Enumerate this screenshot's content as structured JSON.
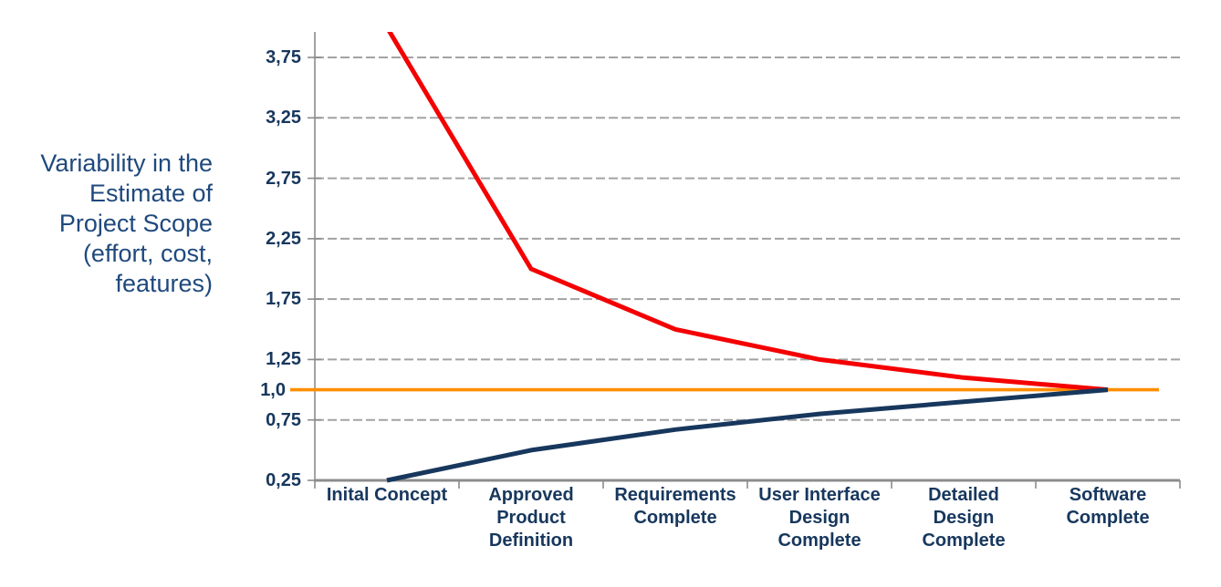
{
  "page": {
    "background": "#FFFFFF"
  },
  "y_axis_title": {
    "text": "Variability in the Estimate of Project Scope (effort, cost, features)",
    "lines": [
      "Variability in the",
      "Estimate of",
      "Project Scope",
      "(effort, cost,",
      "features)"
    ]
  },
  "colors": {
    "title_text": "#1F497D",
    "label_text": "#17375D",
    "upper_line": "#F40000",
    "lower_line": "#17375D",
    "baseline_line": "#FF8E00",
    "gridline": "#A3A3A3",
    "axis": "#8C8C8C"
  },
  "chart_data": {
    "type": "line",
    "title": "",
    "xlabel": "",
    "ylabel": "Variability in the Estimate of Project Scope (effort, cost, features)",
    "decimal_separator": ",",
    "legend": "none",
    "grid": "horizontal-dashed",
    "categories": [
      "Inital Concept",
      "Approved Product Definition",
      "Requirements Complete",
      "User Interface Design Complete",
      "Detailed Design Complete",
      "Software Complete"
    ],
    "category_label_lines": [
      [
        "Inital Concept"
      ],
      [
        "Approved",
        "Product",
        "Definition"
      ],
      [
        "Requirements",
        "Complete"
      ],
      [
        "User Interface",
        "Design",
        "Complete"
      ],
      [
        "Detailed",
        "Design",
        "Complete"
      ],
      [
        "Software",
        "Complete"
      ]
    ],
    "series": [
      {
        "name": "upper-estimate",
        "role": "curve",
        "color": "#F40000",
        "width": 5,
        "values": [
          4.0,
          2.0,
          1.5,
          1.25,
          1.1,
          1.0
        ]
      },
      {
        "name": "lower-estimate",
        "role": "curve",
        "color": "#17375D",
        "width": 5,
        "values": [
          0.25,
          0.5,
          0.67,
          0.8,
          0.9,
          1.0
        ]
      },
      {
        "name": "target-baseline",
        "role": "reference",
        "color": "#FF8E00",
        "width": 3.6,
        "values": [
          1.0,
          1.0,
          1.0,
          1.0,
          1.0,
          1.0
        ]
      }
    ],
    "ylim": [
      0.25,
      3.96
    ],
    "ytick_labels": [
      "3,75",
      "3,25",
      "2,75",
      "2,25",
      "1,75",
      "1,25",
      "1,0",
      "0,75",
      "0,25"
    ],
    "ytick_values": [
      3.75,
      3.25,
      2.75,
      2.25,
      1.75,
      1.25,
      1.0,
      0.75,
      0.25
    ],
    "gridline_values": [
      3.75,
      3.25,
      2.75,
      2.25,
      1.75,
      1.25,
      0.75
    ]
  }
}
